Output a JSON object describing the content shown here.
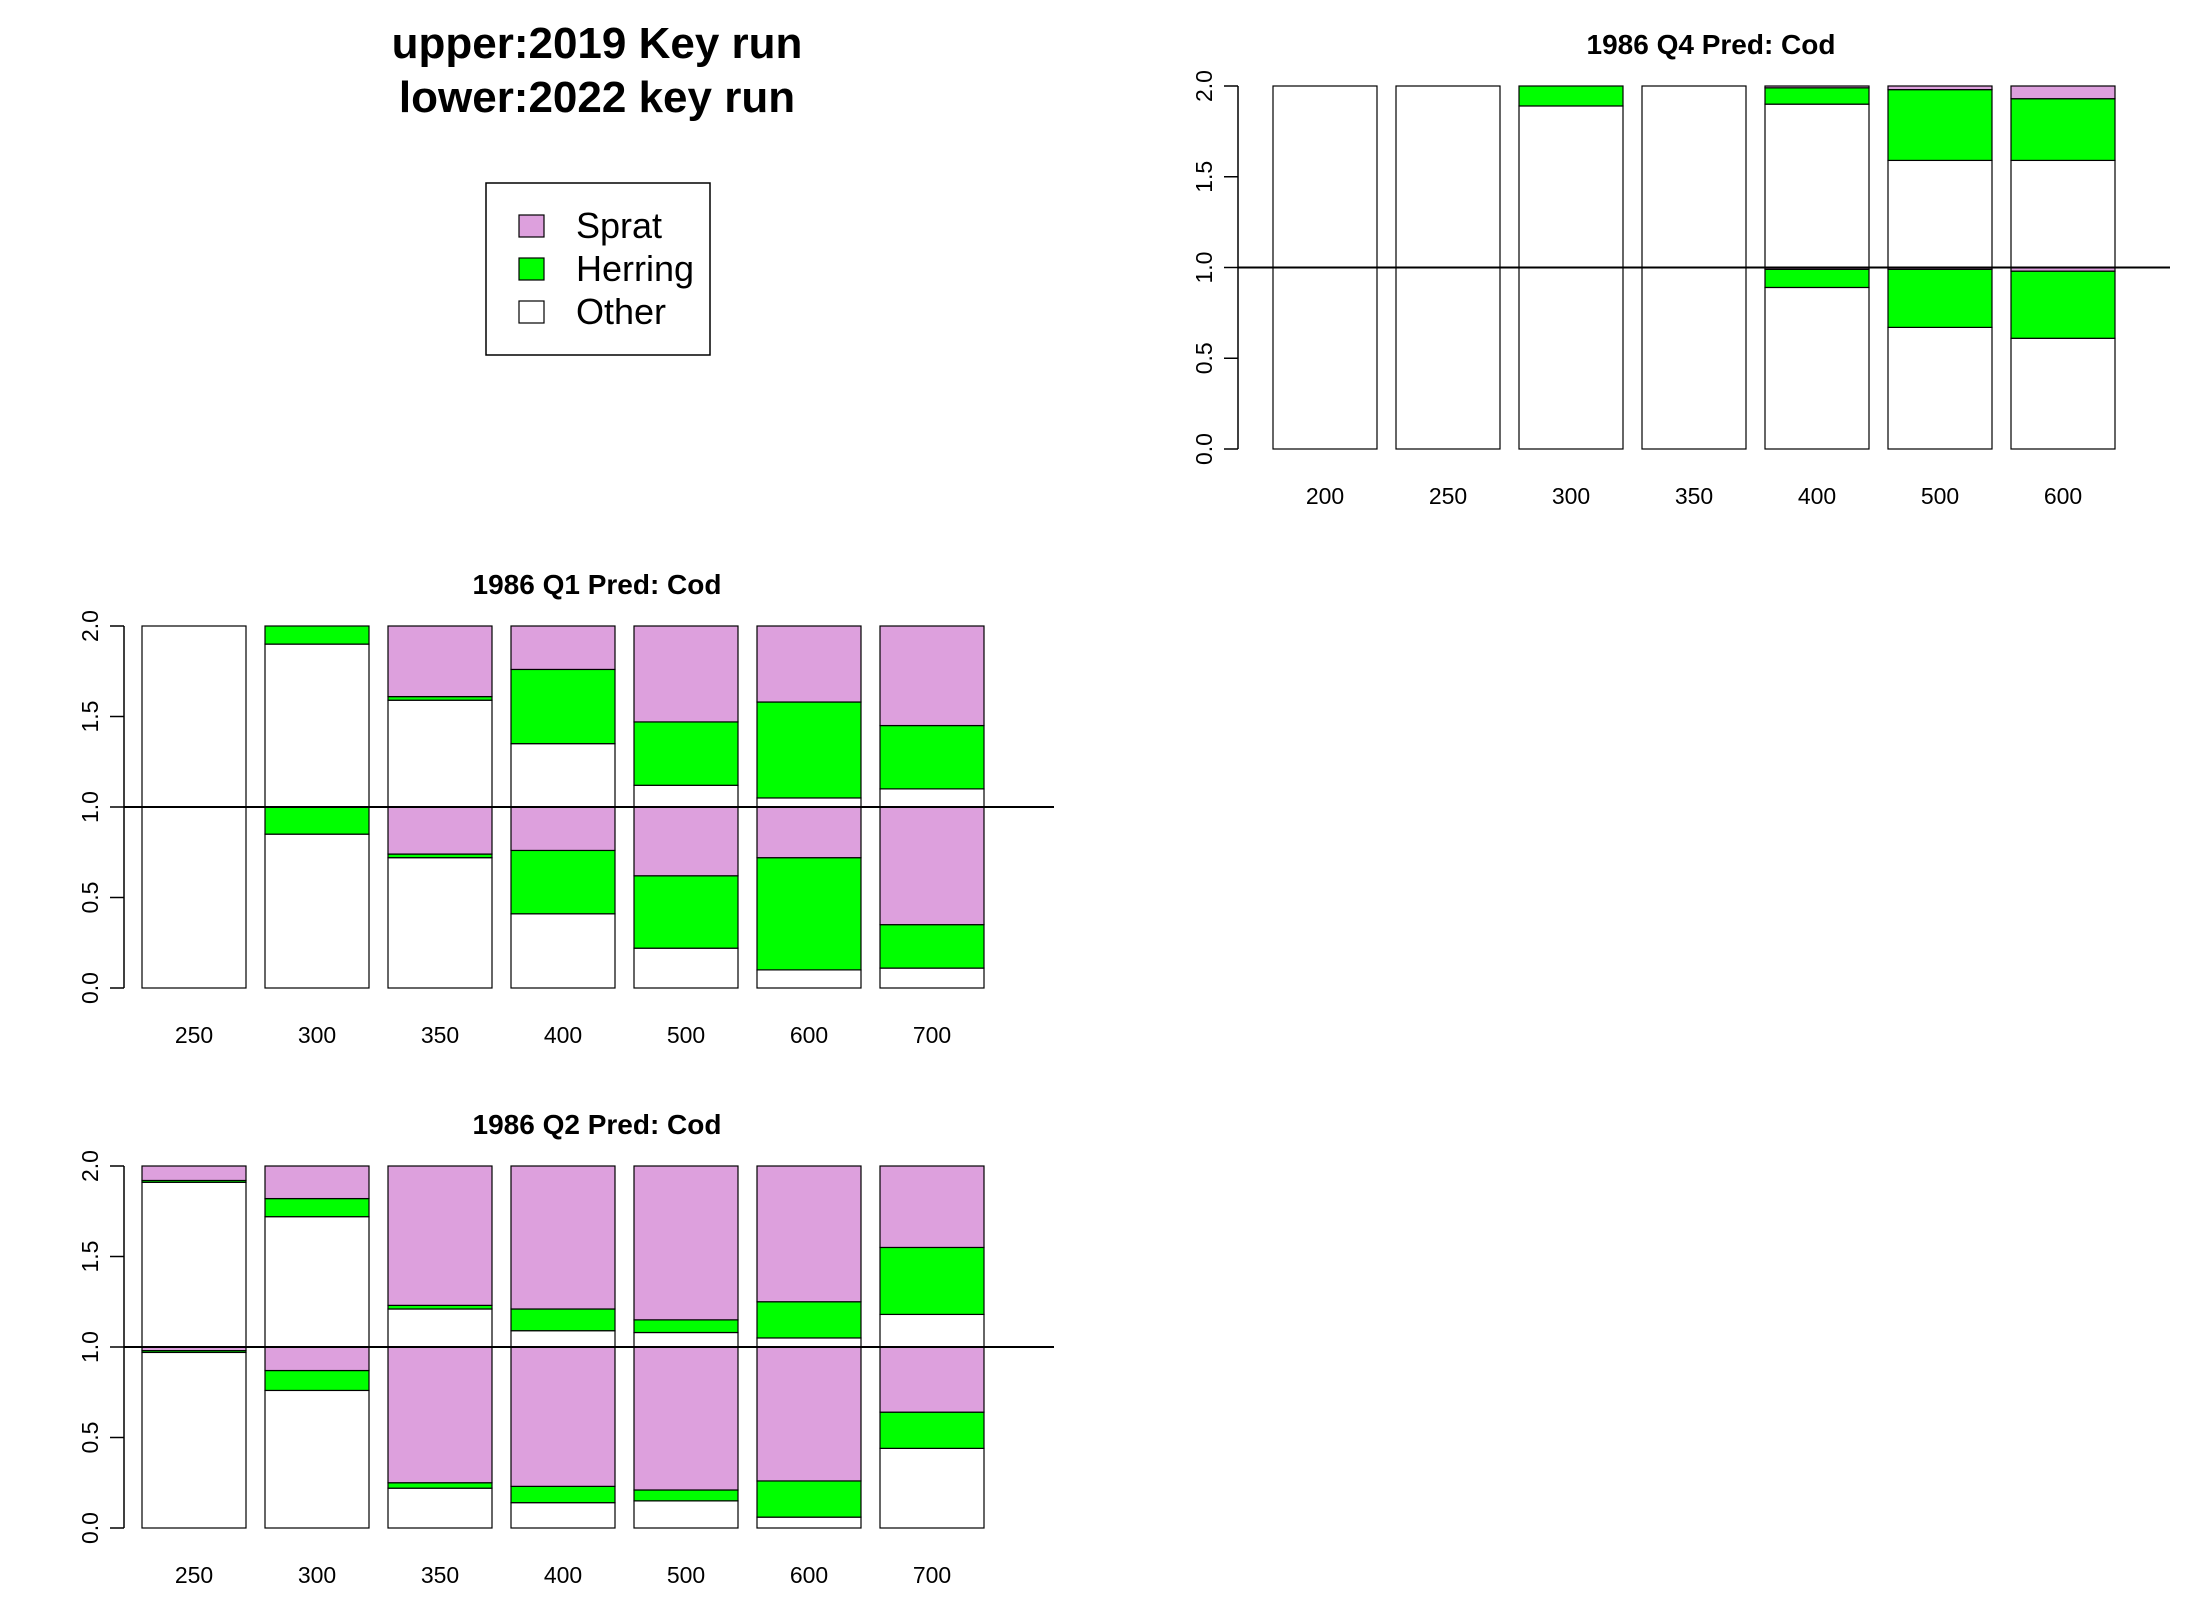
{
  "header": {
    "title_line1": "upper:2019 Key run",
    "title_line2": "lower:2022 key run"
  },
  "legend": {
    "items": [
      {
        "label": "Sprat",
        "color": "#DDA0DD"
      },
      {
        "label": "Herring",
        "color": "#00FF00"
      },
      {
        "label": "Other",
        "color": "#FFFFFF"
      }
    ]
  },
  "colors": {
    "sprat": "#DDA0DD",
    "herring": "#00FF00",
    "other": "#FFFFFF",
    "outline": "#000000"
  },
  "chart_data": [
    {
      "type": "bar",
      "stacked": true,
      "title": "1986 Q4  Pred: Cod",
      "xlabel": "",
      "ylabel": "",
      "ylim": [
        0,
        2
      ],
      "yticks": [
        "0.0",
        "0.5",
        "1.0",
        "1.5",
        "2.0"
      ],
      "reference_line": 1.0,
      "categories": [
        "200",
        "250",
        "300",
        "350",
        "400",
        "500",
        "600"
      ],
      "stack_order": [
        "Other",
        "Herring",
        "Sprat"
      ],
      "upper": {
        "name": "2019 Key run",
        "series": [
          {
            "name": "Other",
            "values": [
              1.0,
              1.0,
              0.89,
              1.0,
              0.9,
              0.59,
              0.59
            ]
          },
          {
            "name": "Herring",
            "values": [
              0.0,
              0.0,
              0.11,
              0.0,
              0.09,
              0.39,
              0.34
            ]
          },
          {
            "name": "Sprat",
            "values": [
              0.0,
              0.0,
              0.0,
              0.0,
              0.01,
              0.02,
              0.07
            ]
          }
        ]
      },
      "lower": {
        "name": "2022 key run",
        "series": [
          {
            "name": "Other",
            "values": [
              1.0,
              1.0,
              1.0,
              1.0,
              0.89,
              0.67,
              0.61
            ]
          },
          {
            "name": "Herring",
            "values": [
              0.0,
              0.0,
              0.0,
              0.0,
              0.1,
              0.32,
              0.37
            ]
          },
          {
            "name": "Sprat",
            "values": [
              0.0,
              0.0,
              0.0,
              0.0,
              0.01,
              0.01,
              0.02
            ]
          }
        ]
      }
    },
    {
      "type": "bar",
      "stacked": true,
      "title": "1986 Q1  Pred: Cod",
      "xlabel": "",
      "ylabel": "",
      "ylim": [
        0,
        2
      ],
      "yticks": [
        "0.0",
        "0.5",
        "1.0",
        "1.5",
        "2.0"
      ],
      "reference_line": 1.0,
      "categories": [
        "250",
        "300",
        "350",
        "400",
        "500",
        "600",
        "700"
      ],
      "stack_order": [
        "Other",
        "Herring",
        "Sprat"
      ],
      "upper": {
        "name": "2019 Key run",
        "series": [
          {
            "name": "Other",
            "values": [
              1.0,
              0.9,
              0.59,
              0.35,
              0.12,
              0.05,
              0.1
            ]
          },
          {
            "name": "Herring",
            "values": [
              0.0,
              0.1,
              0.02,
              0.41,
              0.35,
              0.53,
              0.35
            ]
          },
          {
            "name": "Sprat",
            "values": [
              0.0,
              0.0,
              0.39,
              0.24,
              0.53,
              0.42,
              0.55
            ]
          }
        ]
      },
      "lower": {
        "name": "2022 key run",
        "series": [
          {
            "name": "Other",
            "values": [
              1.0,
              0.85,
              0.72,
              0.41,
              0.22,
              0.1,
              0.11
            ]
          },
          {
            "name": "Herring",
            "values": [
              0.0,
              0.15,
              0.02,
              0.35,
              0.4,
              0.62,
              0.24
            ]
          },
          {
            "name": "Sprat",
            "values": [
              0.0,
              0.0,
              0.26,
              0.24,
              0.38,
              0.28,
              0.65
            ]
          }
        ]
      }
    },
    {
      "type": "bar",
      "stacked": true,
      "title": "1986 Q2  Pred: Cod",
      "xlabel": "",
      "ylabel": "",
      "ylim": [
        0,
        2
      ],
      "yticks": [
        "0.0",
        "0.5",
        "1.0",
        "1.5",
        "2.0"
      ],
      "reference_line": 1.0,
      "categories": [
        "250",
        "300",
        "350",
        "400",
        "500",
        "600",
        "700"
      ],
      "stack_order": [
        "Other",
        "Herring",
        "Sprat"
      ],
      "upper": {
        "name": "2019 Key run",
        "series": [
          {
            "name": "Other",
            "values": [
              0.91,
              0.72,
              0.21,
              0.09,
              0.08,
              0.05,
              0.18
            ]
          },
          {
            "name": "Herring",
            "values": [
              0.01,
              0.1,
              0.02,
              0.12,
              0.07,
              0.2,
              0.37
            ]
          },
          {
            "name": "Sprat",
            "values": [
              0.08,
              0.18,
              0.77,
              0.79,
              0.85,
              0.75,
              0.45
            ]
          }
        ]
      },
      "lower": {
        "name": "2022 key run",
        "series": [
          {
            "name": "Other",
            "values": [
              0.97,
              0.76,
              0.22,
              0.14,
              0.15,
              0.06,
              0.44
            ]
          },
          {
            "name": "Herring",
            "values": [
              0.01,
              0.11,
              0.03,
              0.09,
              0.06,
              0.2,
              0.2
            ]
          },
          {
            "name": "Sprat",
            "values": [
              0.02,
              0.13,
              0.75,
              0.77,
              0.79,
              0.74,
              0.36
            ]
          }
        ]
      }
    }
  ]
}
